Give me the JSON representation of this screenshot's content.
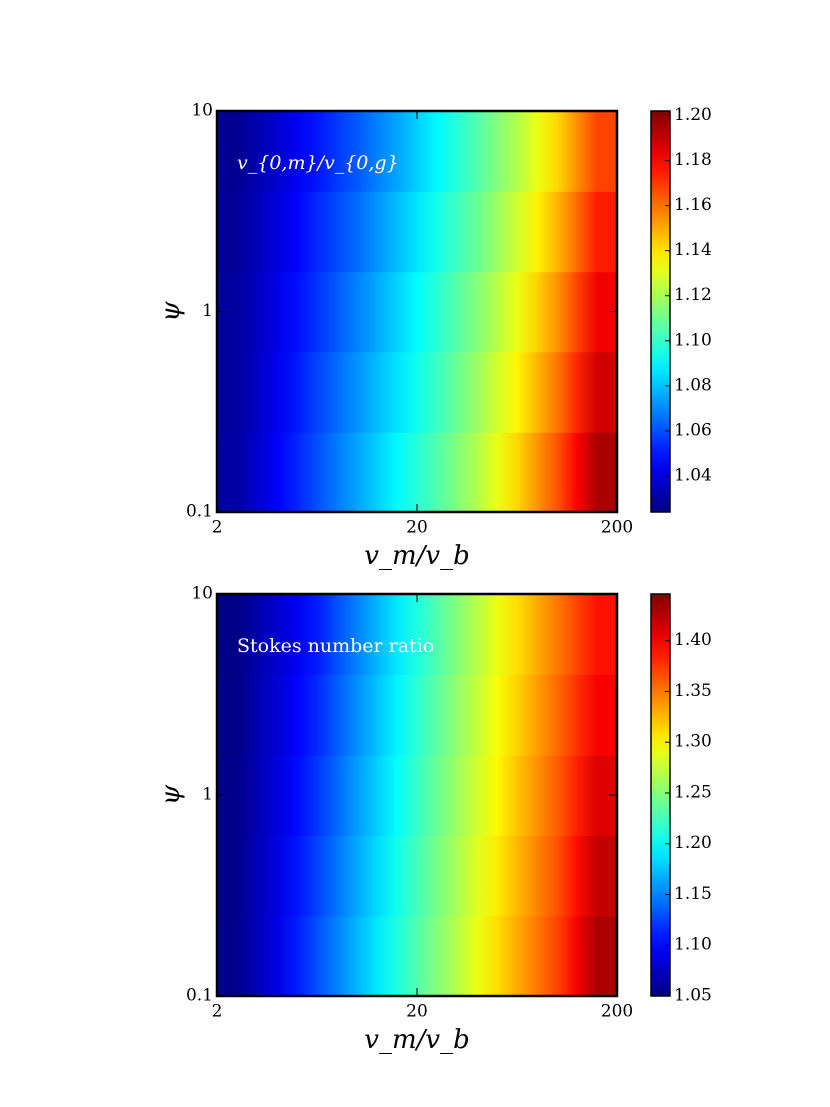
{
  "chart_data": [
    {
      "type": "heatmap",
      "annotation": "v_{0,m}/v_{0,g}",
      "xlabel": "v_m/v_b",
      "ylabel": "ψ",
      "xscale": "log",
      "yscale": "log",
      "colormap": "jet",
      "xlim": [
        2,
        200
      ],
      "ylim": [
        0.1,
        10
      ],
      "xticks": [
        2,
        20,
        200
      ],
      "yticks": [
        0.1,
        1,
        10
      ],
      "xbins": [
        2,
        3.17,
        5.02,
        7.96,
        12.62,
        20,
        31.7,
        50.24,
        79.62,
        126.19,
        200
      ],
      "ybins": [
        0.1,
        0.25,
        0.63,
        1.58,
        3.98,
        10
      ],
      "z": [
        [
          1.03,
          1.045,
          1.06,
          1.075,
          1.09,
          1.105,
          1.122,
          1.142,
          1.165,
          1.195
        ],
        [
          1.029,
          1.043,
          1.058,
          1.072,
          1.086,
          1.101,
          1.118,
          1.137,
          1.159,
          1.188
        ],
        [
          1.029,
          1.042,
          1.055,
          1.069,
          1.083,
          1.098,
          1.114,
          1.132,
          1.154,
          1.182
        ],
        [
          1.028,
          1.04,
          1.053,
          1.065,
          1.079,
          1.094,
          1.109,
          1.127,
          1.148,
          1.175
        ],
        [
          1.027,
          1.038,
          1.05,
          1.062,
          1.075,
          1.09,
          1.105,
          1.122,
          1.142,
          1.168
        ]
      ],
      "clim": [
        1.024,
        1.202
      ],
      "cticks": [
        1.04,
        1.06,
        1.08,
        {
          "value": 1.1,
          "label": "1.10"
        },
        1.12,
        1.14,
        1.16,
        1.18,
        {
          "value": 1.2,
          "label": "1.20"
        }
      ]
    },
    {
      "type": "heatmap",
      "annotation": "Stokes number ratio",
      "xlabel": "v_m/v_b",
      "ylabel": "ψ",
      "xscale": "log",
      "yscale": "log",
      "colormap": "jet",
      "xlim": [
        2,
        200
      ],
      "ylim": [
        0.1,
        10
      ],
      "xticks": [
        2,
        20,
        200
      ],
      "yticks": [
        0.1,
        1,
        10
      ],
      "xbins": [
        2,
        3.17,
        5.02,
        7.96,
        12.62,
        20,
        31.7,
        50.24,
        79.62,
        126.19,
        200
      ],
      "ybins": [
        0.1,
        0.25,
        0.63,
        1.58,
        3.98,
        10
      ],
      "z": [
        [
          1.055,
          1.09,
          1.13,
          1.17,
          1.21,
          1.25,
          1.29,
          1.33,
          1.37,
          1.43
        ],
        [
          1.054,
          1.088,
          1.125,
          1.165,
          1.205,
          1.245,
          1.285,
          1.325,
          1.365,
          1.42
        ],
        [
          1.054,
          1.085,
          1.12,
          1.16,
          1.2,
          1.24,
          1.28,
          1.32,
          1.36,
          1.41
        ],
        [
          1.053,
          1.083,
          1.115,
          1.155,
          1.195,
          1.235,
          1.275,
          1.315,
          1.355,
          1.4
        ],
        [
          1.052,
          1.08,
          1.11,
          1.15,
          1.19,
          1.23,
          1.27,
          1.31,
          1.35,
          1.39
        ]
      ],
      "clim": [
        1.05,
        1.446
      ],
      "cticks": [
        1.05,
        {
          "value": 1.1,
          "label": "1.10"
        },
        1.15,
        {
          "value": 1.2,
          "label": "1.20"
        },
        1.25,
        {
          "value": 1.3,
          "label": "1.30"
        },
        1.35,
        {
          "value": 1.4,
          "label": "1.40"
        }
      ]
    }
  ]
}
